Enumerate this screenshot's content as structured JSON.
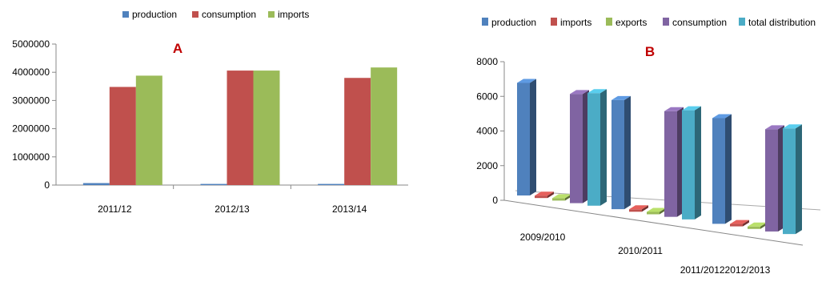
{
  "colors": {
    "production": "#4f81bd",
    "consumption": "#c0504d",
    "imports": "#9bbb59",
    "exports": "#9bbb59",
    "consumption_b": "#8064a2",
    "total_distribution": "#4bacc6",
    "panel_label": "#c00000"
  },
  "chart_data": [
    {
      "panel_label": "A",
      "type": "bar",
      "categories": [
        "2011/12",
        "2012/13",
        "2013/14"
      ],
      "series": [
        {
          "name": "production",
          "values": [
            70000,
            40000,
            40000
          ]
        },
        {
          "name": "consumption",
          "values": [
            3480000,
            4060000,
            3800000
          ]
        },
        {
          "name": "imports",
          "values": [
            3880000,
            4060000,
            4170000
          ]
        }
      ],
      "ylim": [
        0,
        5000000
      ],
      "yticks": [
        "0",
        "1000000",
        "2000000",
        "3000000",
        "4000000",
        "5000000"
      ],
      "grid": false,
      "legend_position": "top"
    },
    {
      "panel_label": "B",
      "type": "bar",
      "style": "3d-clustered",
      "categories": [
        "2009/2010",
        "2010/2011",
        "2011/20122012/2013"
      ],
      "series": [
        {
          "name": "production",
          "values": [
            6500,
            6300,
            6100
          ]
        },
        {
          "name": "imports",
          "values": [
            80,
            70,
            90
          ]
        },
        {
          "name": "exports",
          "values": [
            20,
            30,
            20
          ]
        },
        {
          "name": "consumption",
          "values": [
            6300,
            6100,
            5900
          ]
        },
        {
          "name": "total distribution",
          "values": [
            6500,
            6300,
            6100
          ]
        }
      ],
      "ylim": [
        0,
        8000
      ],
      "yticks": [
        "0",
        "2000",
        "4000",
        "6000",
        "8000"
      ],
      "grid": false,
      "legend_position": "top"
    }
  ]
}
